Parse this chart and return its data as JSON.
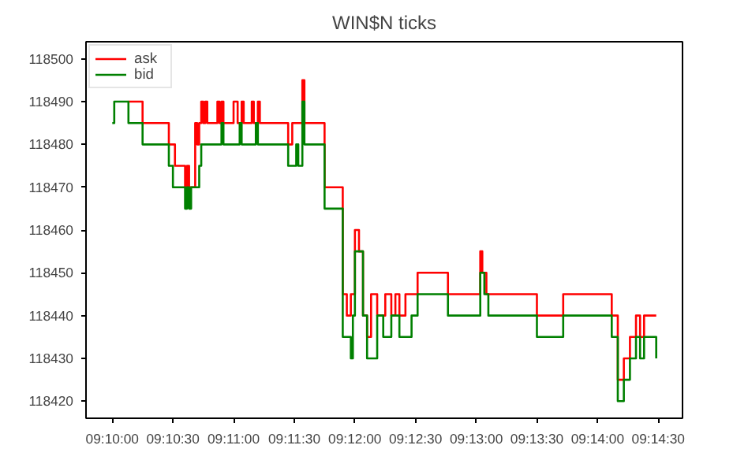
{
  "chart_data": {
    "type": "step",
    "title": "WIN$N ticks",
    "xlim": [
      9.16306,
      9.245
    ],
    "ylim": [
      118416,
      118504
    ],
    "xticks": [
      {
        "value": 9.16667,
        "label": "09:10:00"
      },
      {
        "value": 9.175,
        "label": "09:10:30"
      },
      {
        "value": 9.18333,
        "label": "09:11:00"
      },
      {
        "value": 9.19167,
        "label": "09:11:30"
      },
      {
        "value": 9.2,
        "label": "09:12:00"
      },
      {
        "value": 9.20833,
        "label": "09:12:30"
      },
      {
        "value": 9.21667,
        "label": "09:13:00"
      },
      {
        "value": 9.225,
        "label": "09:13:30"
      },
      {
        "value": 9.23333,
        "label": "09:14:00"
      },
      {
        "value": 9.24167,
        "label": "09:14:30"
      }
    ],
    "yticks": [
      118420,
      118430,
      118440,
      118450,
      118460,
      118470,
      118480,
      118490,
      118500
    ],
    "grid": false,
    "legend": "top left",
    "series": [
      {
        "name": "ask",
        "color": "#ff0000",
        "x": [
          9.16889,
          9.17083,
          9.17444,
          9.17528,
          9.17667,
          9.17694,
          9.17722,
          9.17806,
          9.17833,
          9.17861,
          9.17889,
          9.17917,
          9.17944,
          9.17972,
          9.18111,
          9.18139,
          9.18167,
          9.18194,
          9.18333,
          9.18389,
          9.18444,
          9.18472,
          9.18583,
          9.18611,
          9.18667,
          9.18694,
          9.19083,
          9.19139,
          9.19278,
          9.19306,
          9.19583,
          9.19833,
          9.19889,
          9.19944,
          9.2,
          9.20056,
          9.20111,
          9.20167,
          9.20222,
          9.20306,
          9.20417,
          9.205,
          9.20556,
          9.20611,
          9.20694,
          9.20861,
          9.21278,
          9.21722,
          9.2175,
          9.21806,
          9.225,
          9.22861,
          9.23528,
          9.23611,
          9.23694,
          9.23778,
          9.23861,
          9.23917,
          9.23972,
          9.24139
        ],
        "values": [
          118490,
          118485,
          118480,
          118475,
          118470,
          118475,
          118470,
          118485,
          118480,
          118485,
          118490,
          118485,
          118490,
          118485,
          118490,
          118485,
          118490,
          118485,
          118490,
          118485,
          118490,
          118485,
          118490,
          118485,
          118490,
          118485,
          118480,
          118485,
          118495,
          118485,
          118470,
          118445,
          118440,
          118445,
          118460,
          118455,
          118440,
          118435,
          118445,
          118440,
          118445,
          118440,
          118445,
          118440,
          118445,
          118450,
          118445,
          118455,
          118450,
          118445,
          118440,
          118445,
          118440,
          118425,
          118430,
          118435,
          118440,
          118435,
          118440,
          118440
        ]
      },
      {
        "name": "bid",
        "color": "#008000",
        "x": [
          9.16667,
          9.16694,
          9.16889,
          9.17083,
          9.17444,
          9.175,
          9.17667,
          9.17694,
          9.17722,
          9.1775,
          9.17861,
          9.17889,
          9.18167,
          9.18194,
          9.18417,
          9.18444,
          9.18639,
          9.18667,
          9.19083,
          9.19194,
          9.19222,
          9.19278,
          9.19306,
          9.19583,
          9.19833,
          9.19944,
          9.19972,
          9.2,
          9.20111,
          9.20167,
          9.20306,
          9.20389,
          9.205,
          9.20611,
          9.20778,
          9.20861,
          9.21278,
          9.21722,
          9.21778,
          9.21833,
          9.225,
          9.22861,
          9.23528,
          9.23611,
          9.23694,
          9.23778,
          9.23861,
          9.23917,
          9.23972,
          9.24139
        ],
        "values": [
          118485,
          118490,
          118485,
          118480,
          118475,
          118470,
          118465,
          118470,
          118465,
          118470,
          118475,
          118480,
          118485,
          118480,
          118485,
          118480,
          118485,
          118480,
          118475,
          118480,
          118475,
          118490,
          118480,
          118465,
          118435,
          118430,
          118440,
          118455,
          118440,
          118430,
          118440,
          118435,
          118440,
          118435,
          118440,
          118445,
          118440,
          118450,
          118445,
          118440,
          118435,
          118440,
          118435,
          118420,
          118425,
          118430,
          118435,
          118430,
          118435,
          118430
        ]
      }
    ]
  }
}
